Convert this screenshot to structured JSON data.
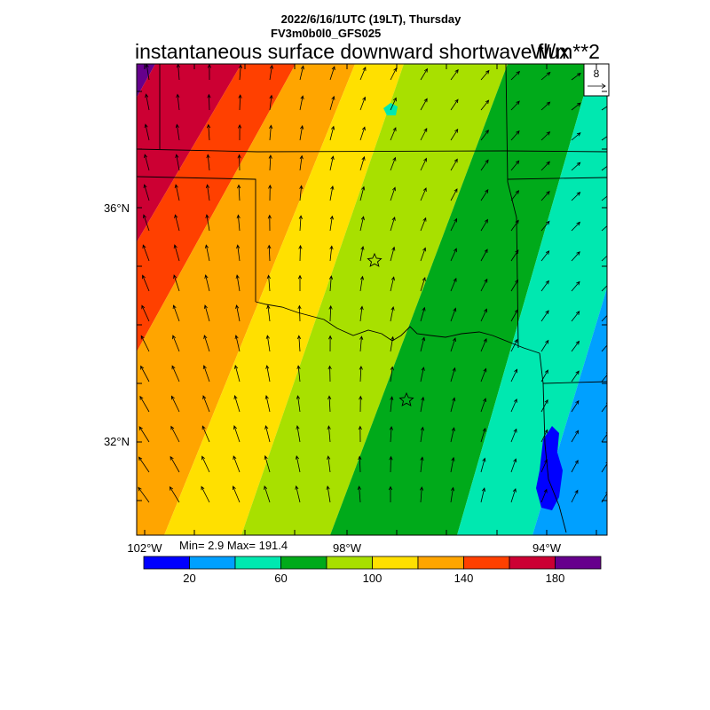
{
  "header": {
    "line1": "2022/6/16/1UTC (19LT), Thursday",
    "line2": "FV3m0b0l0_GFS025"
  },
  "title": {
    "left": "instantaneous surface downward shortwave flux",
    "right": "W/m**2"
  },
  "map": {
    "lat_labels": [
      "36°N",
      "32°N"
    ],
    "lon_labels": [
      "102°W",
      "98°W",
      "94°W"
    ],
    "field_bands": [
      {
        "range": "< 10",
        "color": "#0000ff"
      },
      {
        "range": "10-30",
        "color": "#00a0ff"
      },
      {
        "range": "30-50",
        "color": "#00e8b0"
      },
      {
        "range": "50-70",
        "color": "#00aa1a"
      },
      {
        "range": "70-90",
        "color": "#a8e000"
      },
      {
        "range": "90-110",
        "color": "#ffe000"
      },
      {
        "range": "110-130",
        "color": "#ffa500"
      },
      {
        "range": "130-150",
        "color": "#ff4000"
      },
      {
        "range": "150-170",
        "color": "#cc0033"
      },
      {
        "range": "> 170",
        "color": "#66008c"
      }
    ],
    "wind_reference": {
      "value": "8"
    },
    "stations": [
      "star-marker",
      "star-marker"
    ]
  },
  "stats": {
    "text": "Min= 2.9 Max= 191.4"
  },
  "colorbar": {
    "colors": [
      "#0000ff",
      "#00a0ff",
      "#00e8b0",
      "#00aa1a",
      "#a8e000",
      "#ffe000",
      "#ffa500",
      "#ff4000",
      "#cc0033",
      "#66008c"
    ],
    "tick_labels": [
      "20",
      "60",
      "100",
      "140",
      "180"
    ]
  }
}
